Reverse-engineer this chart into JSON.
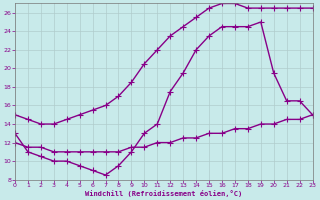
{
  "background_color": "#c8eaea",
  "line_color": "#880088",
  "grid_color": "#b0cccc",
  "xlabel": "Windchill (Refroidissement éolien,°C)",
  "xlabel_color": "#880088",
  "xtick_color": "#880088",
  "ytick_color": "#880088",
  "curve1_x": [
    0,
    1,
    2,
    3,
    4,
    5,
    6,
    7,
    8,
    9,
    10,
    11,
    12,
    13,
    14,
    15,
    16,
    17,
    18,
    19,
    20,
    21,
    22,
    23
  ],
  "curve1_y": [
    15.0,
    14.5,
    14.0,
    14.0,
    14.5,
    15.0,
    15.5,
    16.0,
    17.0,
    18.5,
    20.5,
    22.0,
    23.5,
    24.5,
    25.5,
    26.5,
    27.0,
    27.0,
    26.5,
    26.5,
    26.5,
    26.5,
    26.5,
    26.5
  ],
  "curve2_x": [
    0,
    1,
    2,
    3,
    4,
    5,
    6,
    7,
    8,
    9,
    10,
    11,
    12,
    13,
    14,
    15,
    16,
    17,
    18,
    19,
    20,
    21,
    22,
    23
  ],
  "curve2_y": [
    13.0,
    11.0,
    10.5,
    10.0,
    10.0,
    9.5,
    9.0,
    8.5,
    9.5,
    11.0,
    13.0,
    14.0,
    17.5,
    19.5,
    22.0,
    23.5,
    24.5,
    24.5,
    24.5,
    25.0,
    19.5,
    16.5,
    16.5,
    15.0
  ],
  "curve3_x": [
    0,
    1,
    2,
    3,
    4,
    5,
    6,
    7,
    8,
    9,
    10,
    11,
    12,
    13,
    14,
    15,
    16,
    17,
    18,
    19,
    20,
    21,
    22,
    23
  ],
  "curve3_y": [
    12.0,
    11.5,
    11.5,
    11.0,
    11.0,
    11.0,
    11.0,
    11.0,
    11.0,
    11.5,
    11.5,
    12.0,
    12.0,
    12.5,
    12.5,
    13.0,
    13.0,
    13.5,
    13.5,
    14.0,
    14.0,
    14.5,
    14.5,
    15.0
  ],
  "xlim": [
    0,
    23
  ],
  "ylim": [
    8,
    27
  ],
  "yticks": [
    8,
    10,
    12,
    14,
    16,
    18,
    20,
    22,
    24,
    26
  ],
  "xticks": [
    0,
    1,
    2,
    3,
    4,
    5,
    6,
    7,
    8,
    9,
    10,
    11,
    12,
    13,
    14,
    15,
    16,
    17,
    18,
    19,
    20,
    21,
    22,
    23
  ]
}
